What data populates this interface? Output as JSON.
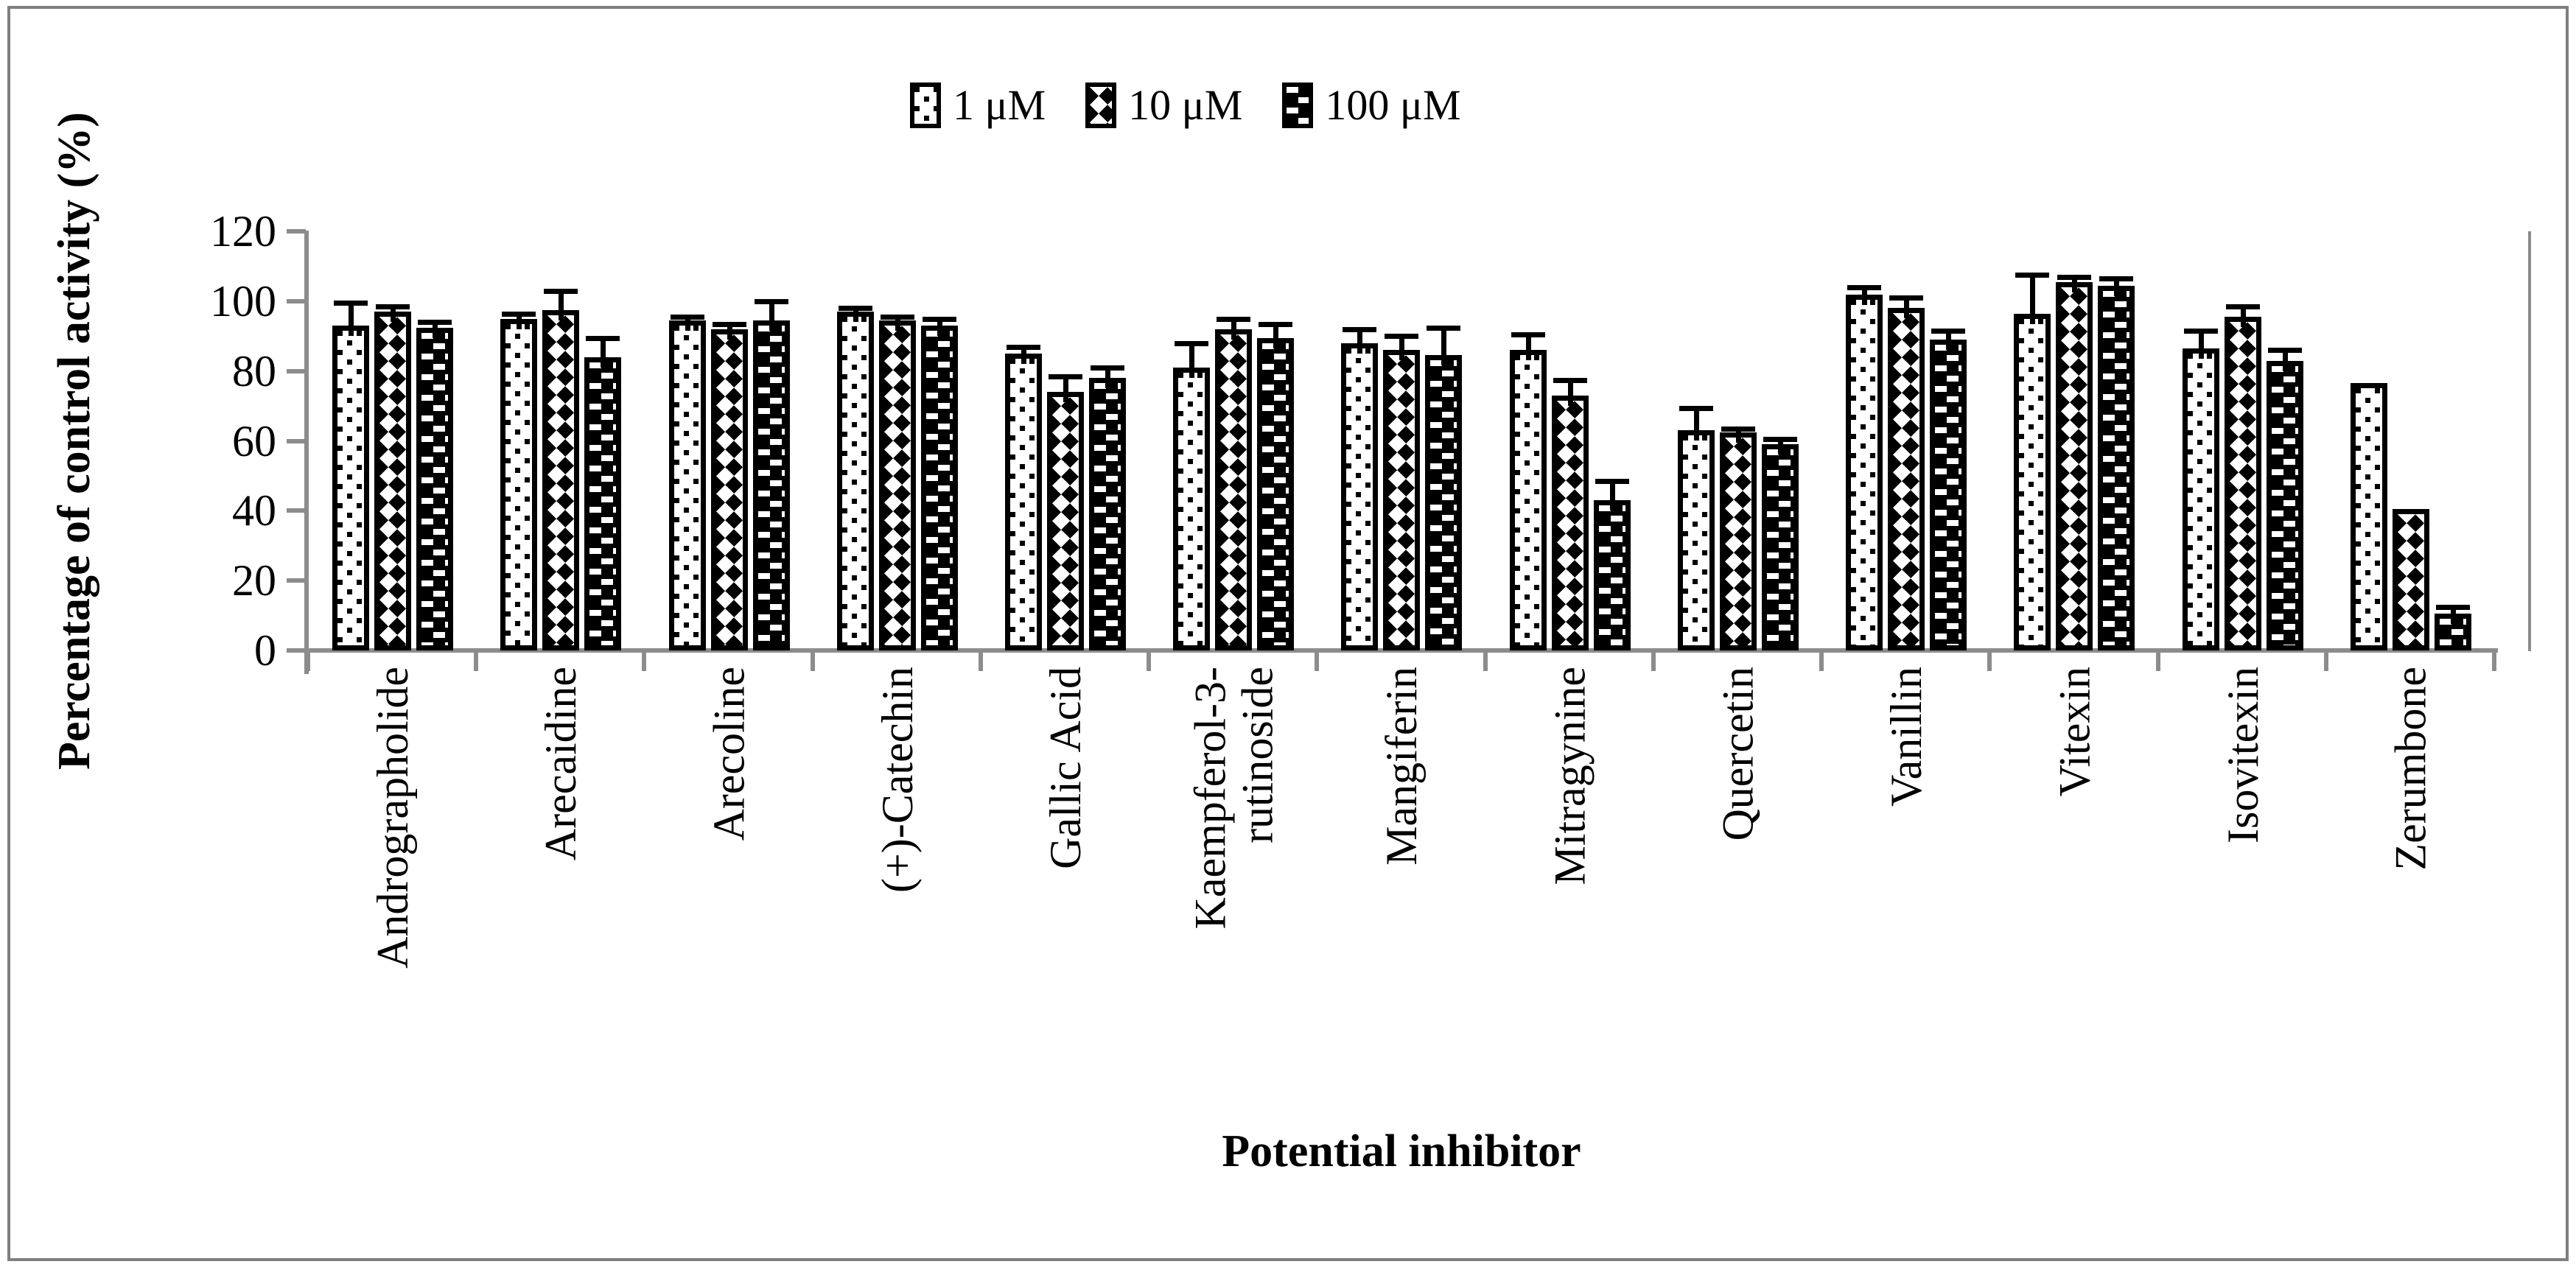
{
  "figure": {
    "background_color": "#ffffff",
    "border_color": "#7f7f7f",
    "axis_color": "#8c8c8c",
    "bar_outline_color": "#000000"
  },
  "chart_data": {
    "type": "bar",
    "title": "",
    "xlabel": "Potential inhibitor",
    "ylabel": "Percentage of control activity (%)",
    "ylim": [
      0,
      120
    ],
    "yticks": [
      0,
      20,
      40,
      60,
      80,
      100,
      120
    ],
    "grid": false,
    "legend_position": "top-center",
    "error_bars": "upper",
    "categories": [
      "Andrographolide",
      "Arecaidine",
      "Arecoline",
      "(+)-Catechin",
      "Gallic Acid",
      "Kaempferol-3-\nrutinoside",
      "Mangiferin",
      "Mitragynine",
      "Quercetin",
      "Vanillin",
      "Vitexin",
      "Isovitexin",
      "Zerumbone"
    ],
    "series": [
      {
        "name": "1 μM",
        "pattern": "sparse-square-dots",
        "values": [
          93,
          95,
          94.5,
          97,
          85,
          81,
          88,
          86,
          63,
          102,
          96.5,
          86.5,
          76.5
        ],
        "errors": [
          6.5,
          1.5,
          1,
          1,
          2,
          7,
          4,
          4.5,
          6.5,
          2,
          11,
          5,
          0
        ]
      },
      {
        "name": "10 μM",
        "pattern": "diamond-checker",
        "values": [
          97,
          97.5,
          92,
          94.5,
          74,
          92,
          86,
          73,
          62.5,
          98,
          105.5,
          95.5,
          40.5
        ],
        "errors": [
          1.5,
          5.5,
          1.5,
          1,
          4.5,
          3,
          4,
          4.5,
          1,
          3,
          1.5,
          3,
          0
        ]
      },
      {
        "name": "100 μM",
        "pattern": "white-dashes-on-black",
        "values": [
          92.5,
          84,
          94.5,
          93,
          78,
          89.5,
          84.5,
          43,
          59,
          89,
          104.5,
          83,
          10.5
        ],
        "errors": [
          1.5,
          5.5,
          5.5,
          2,
          3,
          4,
          8,
          5.5,
          1.5,
          2.5,
          2,
          3,
          2
        ]
      }
    ]
  }
}
